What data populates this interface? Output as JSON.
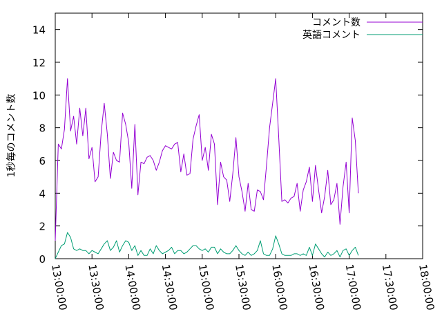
{
  "chart_data": {
    "type": "line",
    "ylabel": "1秒毎のコメント数",
    "xlabel": "",
    "title": "",
    "ylim": [
      0,
      15
    ],
    "yticks": [
      0,
      2,
      4,
      6,
      8,
      10,
      12,
      14
    ],
    "xlim": [
      "13:00:00",
      "18:00:00"
    ],
    "xticks": [
      "13:00:00",
      "13:30:00",
      "14:00:00",
      "14:30:00",
      "15:00:00",
      "15:30:00",
      "16:00:00",
      "16:30:00",
      "17:00:00",
      "17:30:00",
      "18:00:00"
    ],
    "grid": false,
    "legend": "top-right",
    "series": [
      {
        "name": "コメント数",
        "color": "#9400d3",
        "points": [
          [
            "13:00:00",
            1.1
          ],
          [
            "13:02:30",
            7.0
          ],
          [
            "13:05:00",
            6.7
          ],
          [
            "13:07:30",
            7.9
          ],
          [
            "13:10:00",
            11.0
          ],
          [
            "13:12:30",
            7.8
          ],
          [
            "13:15:00",
            8.7
          ],
          [
            "13:17:30",
            7.0
          ],
          [
            "13:20:00",
            9.2
          ],
          [
            "13:22:30",
            7.5
          ],
          [
            "13:25:00",
            9.2
          ],
          [
            "13:27:30",
            6.1
          ],
          [
            "13:30:00",
            6.8
          ],
          [
            "13:32:30",
            4.7
          ],
          [
            "13:35:00",
            5.0
          ],
          [
            "13:37:30",
            7.7
          ],
          [
            "13:40:00",
            9.5
          ],
          [
            "13:42:30",
            7.6
          ],
          [
            "13:45:00",
            4.9
          ],
          [
            "13:47:30",
            6.5
          ],
          [
            "13:50:00",
            6.0
          ],
          [
            "13:52:30",
            5.9
          ],
          [
            "13:55:00",
            8.9
          ],
          [
            "13:57:30",
            8.2
          ],
          [
            "14:00:00",
            7.1
          ],
          [
            "14:02:30",
            4.3
          ],
          [
            "14:05:00",
            8.2
          ],
          [
            "14:07:30",
            3.9
          ],
          [
            "14:10:00",
            5.9
          ],
          [
            "14:12:30",
            5.8
          ],
          [
            "14:15:00",
            6.2
          ],
          [
            "14:17:30",
            6.3
          ],
          [
            "14:20:00",
            6.0
          ],
          [
            "14:22:30",
            5.4
          ],
          [
            "14:25:00",
            5.9
          ],
          [
            "14:27:30",
            6.6
          ],
          [
            "14:30:00",
            6.9
          ],
          [
            "14:32:30",
            6.8
          ],
          [
            "14:35:00",
            6.7
          ],
          [
            "14:37:30",
            7.0
          ],
          [
            "14:40:00",
            7.1
          ],
          [
            "14:42:30",
            5.3
          ],
          [
            "14:45:00",
            6.4
          ],
          [
            "14:47:30",
            5.1
          ],
          [
            "14:50:00",
            5.2
          ],
          [
            "14:52:30",
            7.3
          ],
          [
            "14:55:00",
            8.1
          ],
          [
            "14:57:30",
            8.8
          ],
          [
            "15:00:00",
            6.0
          ],
          [
            "15:02:30",
            6.8
          ],
          [
            "15:05:00",
            5.4
          ],
          [
            "15:07:30",
            7.6
          ],
          [
            "15:10:00",
            7.0
          ],
          [
            "15:12:30",
            3.3
          ],
          [
            "15:15:00",
            5.9
          ],
          [
            "15:17:30",
            5.0
          ],
          [
            "15:20:00",
            4.8
          ],
          [
            "15:22:30",
            3.5
          ],
          [
            "15:25:00",
            5.2
          ],
          [
            "15:27:30",
            7.4
          ],
          [
            "15:30:00",
            5.0
          ],
          [
            "15:32:30",
            4.1
          ],
          [
            "15:35:00",
            2.9
          ],
          [
            "15:37:30",
            4.6
          ],
          [
            "15:40:00",
            3.0
          ],
          [
            "15:42:30",
            2.9
          ],
          [
            "15:45:00",
            4.2
          ],
          [
            "15:47:30",
            4.1
          ],
          [
            "15:50:00",
            3.6
          ],
          [
            "15:52:30",
            5.7
          ],
          [
            "15:55:00",
            8.0
          ],
          [
            "15:57:30",
            9.5
          ],
          [
            "16:00:00",
            11.0
          ],
          [
            "16:02:30",
            7.4
          ],
          [
            "16:05:00",
            3.5
          ],
          [
            "16:07:30",
            3.6
          ],
          [
            "16:10:00",
            3.4
          ],
          [
            "16:12:30",
            3.7
          ],
          [
            "16:15:00",
            3.8
          ],
          [
            "16:17:30",
            4.6
          ],
          [
            "16:20:00",
            2.9
          ],
          [
            "16:22:30",
            4.2
          ],
          [
            "16:25:00",
            4.7
          ],
          [
            "16:27:30",
            5.6
          ],
          [
            "16:30:00",
            3.5
          ],
          [
            "16:32:30",
            5.7
          ],
          [
            "16:35:00",
            4.2
          ],
          [
            "16:37:30",
            2.8
          ],
          [
            "16:40:00",
            3.8
          ],
          [
            "16:42:30",
            5.4
          ],
          [
            "16:45:00",
            3.3
          ],
          [
            "16:47:30",
            3.6
          ],
          [
            "16:50:00",
            4.6
          ],
          [
            "16:52:30",
            2.1
          ],
          [
            "16:55:00",
            4.4
          ],
          [
            "16:57:30",
            5.9
          ],
          [
            "17:00:00",
            2.8
          ],
          [
            "17:02:30",
            8.6
          ],
          [
            "17:05:00",
            7.2
          ],
          [
            "17:07:30",
            4.0
          ]
        ]
      },
      {
        "name": "英語コメント",
        "color": "#009e73",
        "points": [
          [
            "13:00:00",
            0.0
          ],
          [
            "13:02:30",
            0.4
          ],
          [
            "13:05:00",
            0.8
          ],
          [
            "13:07:30",
            0.9
          ],
          [
            "13:10:00",
            1.6
          ],
          [
            "13:12:30",
            1.3
          ],
          [
            "13:15:00",
            0.6
          ],
          [
            "13:17:30",
            0.5
          ],
          [
            "13:20:00",
            0.6
          ],
          [
            "13:22:30",
            0.5
          ],
          [
            "13:25:00",
            0.5
          ],
          [
            "13:27:30",
            0.3
          ],
          [
            "13:30:00",
            0.5
          ],
          [
            "13:32:30",
            0.4
          ],
          [
            "13:35:00",
            0.3
          ],
          [
            "13:37:30",
            0.6
          ],
          [
            "13:40:00",
            0.9
          ],
          [
            "13:42:30",
            1.1
          ],
          [
            "13:45:00",
            0.5
          ],
          [
            "13:47:30",
            0.7
          ],
          [
            "13:50:00",
            1.1
          ],
          [
            "13:52:30",
            0.4
          ],
          [
            "13:55:00",
            0.8
          ],
          [
            "13:57:30",
            1.1
          ],
          [
            "14:00:00",
            1.0
          ],
          [
            "14:02:30",
            0.5
          ],
          [
            "14:05:00",
            0.8
          ],
          [
            "14:07:30",
            0.2
          ],
          [
            "14:10:00",
            0.5
          ],
          [
            "14:12:30",
            0.2
          ],
          [
            "14:15:00",
            0.2
          ],
          [
            "14:17:30",
            0.6
          ],
          [
            "14:20:00",
            0.3
          ],
          [
            "14:22:30",
            0.8
          ],
          [
            "14:25:00",
            0.5
          ],
          [
            "14:27:30",
            0.3
          ],
          [
            "14:30:00",
            0.4
          ],
          [
            "14:32:30",
            0.5
          ],
          [
            "14:35:00",
            0.7
          ],
          [
            "14:37:30",
            0.3
          ],
          [
            "14:40:00",
            0.5
          ],
          [
            "14:42:30",
            0.5
          ],
          [
            "14:45:00",
            0.3
          ],
          [
            "14:47:30",
            0.4
          ],
          [
            "14:50:00",
            0.6
          ],
          [
            "14:52:30",
            0.8
          ],
          [
            "14:55:00",
            0.8
          ],
          [
            "14:57:30",
            0.6
          ],
          [
            "15:00:00",
            0.5
          ],
          [
            "15:02:30",
            0.6
          ],
          [
            "15:05:00",
            0.4
          ],
          [
            "15:07:30",
            0.7
          ],
          [
            "15:10:00",
            0.7
          ],
          [
            "15:12:30",
            0.3
          ],
          [
            "15:15:00",
            0.6
          ],
          [
            "15:17:30",
            0.4
          ],
          [
            "15:20:00",
            0.3
          ],
          [
            "15:22:30",
            0.3
          ],
          [
            "15:25:00",
            0.5
          ],
          [
            "15:27:30",
            0.8
          ],
          [
            "15:30:00",
            0.5
          ],
          [
            "15:32:30",
            0.3
          ],
          [
            "15:35:00",
            0.2
          ],
          [
            "15:37:30",
            0.4
          ],
          [
            "15:40:00",
            0.2
          ],
          [
            "15:42:30",
            0.3
          ],
          [
            "15:45:00",
            0.5
          ],
          [
            "15:47:30",
            1.1
          ],
          [
            "15:50:00",
            0.3
          ],
          [
            "15:52:30",
            0.2
          ],
          [
            "15:55:00",
            0.2
          ],
          [
            "15:57:30",
            0.6
          ],
          [
            "16:00:00",
            1.4
          ],
          [
            "16:02:30",
            0.9
          ],
          [
            "16:05:00",
            0.3
          ],
          [
            "16:07:30",
            0.2
          ],
          [
            "16:10:00",
            0.2
          ],
          [
            "16:12:30",
            0.2
          ],
          [
            "16:15:00",
            0.3
          ],
          [
            "16:17:30",
            0.3
          ],
          [
            "16:20:00",
            0.2
          ],
          [
            "16:22:30",
            0.3
          ],
          [
            "16:25:00",
            0.2
          ],
          [
            "16:27:30",
            0.7
          ],
          [
            "16:30:00",
            0.2
          ],
          [
            "16:32:30",
            0.9
          ],
          [
            "16:35:00",
            0.6
          ],
          [
            "16:37:30",
            0.3
          ],
          [
            "16:40:00",
            0.1
          ],
          [
            "16:42:30",
            0.4
          ],
          [
            "16:45:00",
            0.2
          ],
          [
            "16:47:30",
            0.3
          ],
          [
            "16:50:00",
            0.5
          ],
          [
            "16:52:30",
            0.1
          ],
          [
            "16:55:00",
            0.5
          ],
          [
            "16:57:30",
            0.6
          ],
          [
            "17:00:00",
            0.2
          ],
          [
            "17:02:30",
            0.5
          ],
          [
            "17:05:00",
            0.7
          ],
          [
            "17:07:30",
            0.2
          ]
        ]
      }
    ]
  }
}
